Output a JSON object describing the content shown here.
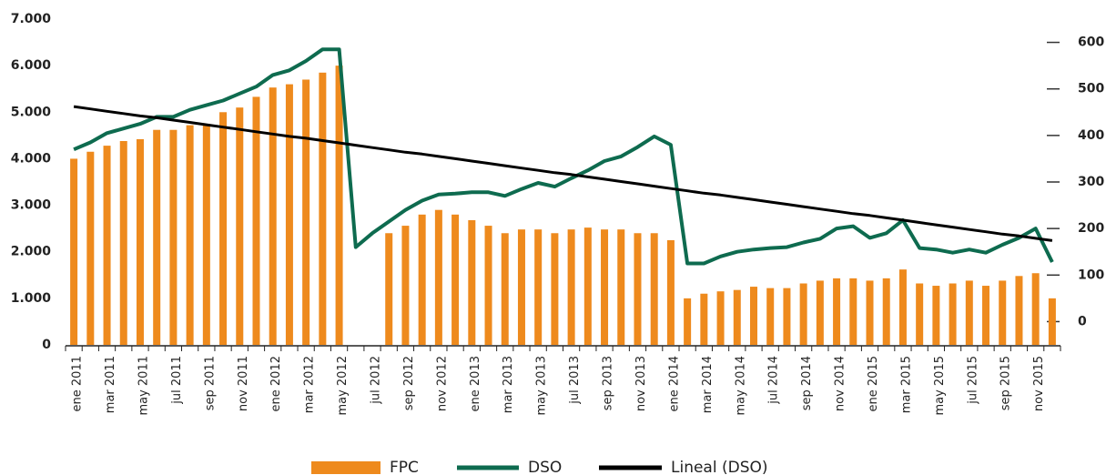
{
  "chart_data": {
    "type": "bar",
    "categories": [
      "ene 2011",
      null,
      "mar 2011",
      null,
      "may 2011",
      null,
      "jul 2011",
      null,
      "sep 2011",
      null,
      "nov 2011",
      null,
      "ene 2012",
      null,
      "mar 2012",
      null,
      "may 2012",
      null,
      "jul 2012",
      null,
      "sep 2012",
      null,
      "nov 2012",
      null,
      "ene 2013",
      null,
      "mar 2013",
      null,
      "may 2013",
      null,
      "jul 2013",
      null,
      "sep 2013",
      null,
      "nov 2013",
      null,
      "ene 2014",
      null,
      "mar 2014",
      null,
      "may 2014",
      null,
      "jul 2014",
      null,
      "sep 2014",
      null,
      "nov 2014",
      null,
      "ene 2015",
      null,
      "mar 2015",
      null,
      "may 2015",
      null,
      "jul 2015",
      null,
      "sep 2015",
      null,
      "nov 2015",
      null
    ],
    "series": [
      {
        "name": "FPC",
        "type": "bar",
        "axis": "y",
        "color": "#ee8a1d",
        "values": [
          4000,
          4150,
          4280,
          4380,
          4420,
          4620,
          4620,
          4720,
          4750,
          5000,
          5100,
          5330,
          5530,
          5600,
          5700,
          5850,
          6000,
          null,
          null,
          2400,
          2560,
          2800,
          2900,
          2800,
          2680,
          2560,
          2400,
          2480,
          2480,
          2400,
          2480,
          2520,
          2480,
          2480,
          2400,
          2400,
          2250,
          1000,
          1100,
          1150,
          1180,
          1250,
          1220,
          1220,
          1320,
          1380,
          1430,
          1430,
          1380,
          1430,
          1620,
          1320,
          1270,
          1320,
          1380,
          1270,
          1380,
          1480,
          1540,
          1000
        ]
      },
      {
        "name": "DSO",
        "type": "line",
        "axis": "y2",
        "color": "#0e6b4f",
        "values": [
          370,
          385,
          405,
          415,
          425,
          440,
          440,
          455,
          465,
          475,
          490,
          505,
          530,
          540,
          560,
          585,
          585,
          160,
          190,
          215,
          240,
          260,
          273,
          275,
          278,
          278,
          270,
          285,
          298,
          290,
          308,
          325,
          345,
          355,
          375,
          398,
          380,
          125,
          125,
          140,
          150,
          155,
          158,
          160,
          170,
          178,
          200,
          205,
          180,
          190,
          218,
          158,
          155,
          148,
          155,
          148,
          165,
          180,
          200,
          128
        ]
      },
      {
        "name": "Lineal (DSO)",
        "type": "line",
        "axis": "y2",
        "color": "#000000",
        "values": [
          462,
          457,
          452,
          447,
          442,
          438,
          433,
          428,
          423,
          418,
          413,
          408,
          403,
          398,
          394,
          389,
          384,
          379,
          374,
          369,
          364,
          360,
          355,
          350,
          345,
          340,
          335,
          330,
          325,
          320,
          316,
          311,
          306,
          301,
          296,
          291,
          286,
          281,
          276,
          272,
          267,
          262,
          257,
          252,
          247,
          242,
          237,
          232,
          228,
          223,
          218,
          213,
          208,
          203,
          198,
          193,
          188,
          184,
          179,
          174
        ]
      }
    ],
    "ylim": [
      0,
      7000
    ],
    "yticks": [
      0,
      {
        "value": 1000,
        "label": "1.000"
      },
      {
        "value": 2000,
        "label": "2.000"
      },
      {
        "value": 3000,
        "label": "3.000"
      },
      {
        "value": 4000,
        "label": "4.000"
      },
      {
        "value": 5000,
        "label": "5.000"
      },
      {
        "value": 6000,
        "label": "6.000"
      },
      {
        "value": 7000,
        "label": "7.000"
      }
    ],
    "y2lim": [
      -50,
      650
    ],
    "y2ticks": [
      0,
      100,
      200,
      300,
      400,
      500,
      600
    ],
    "legend": "bottom"
  }
}
